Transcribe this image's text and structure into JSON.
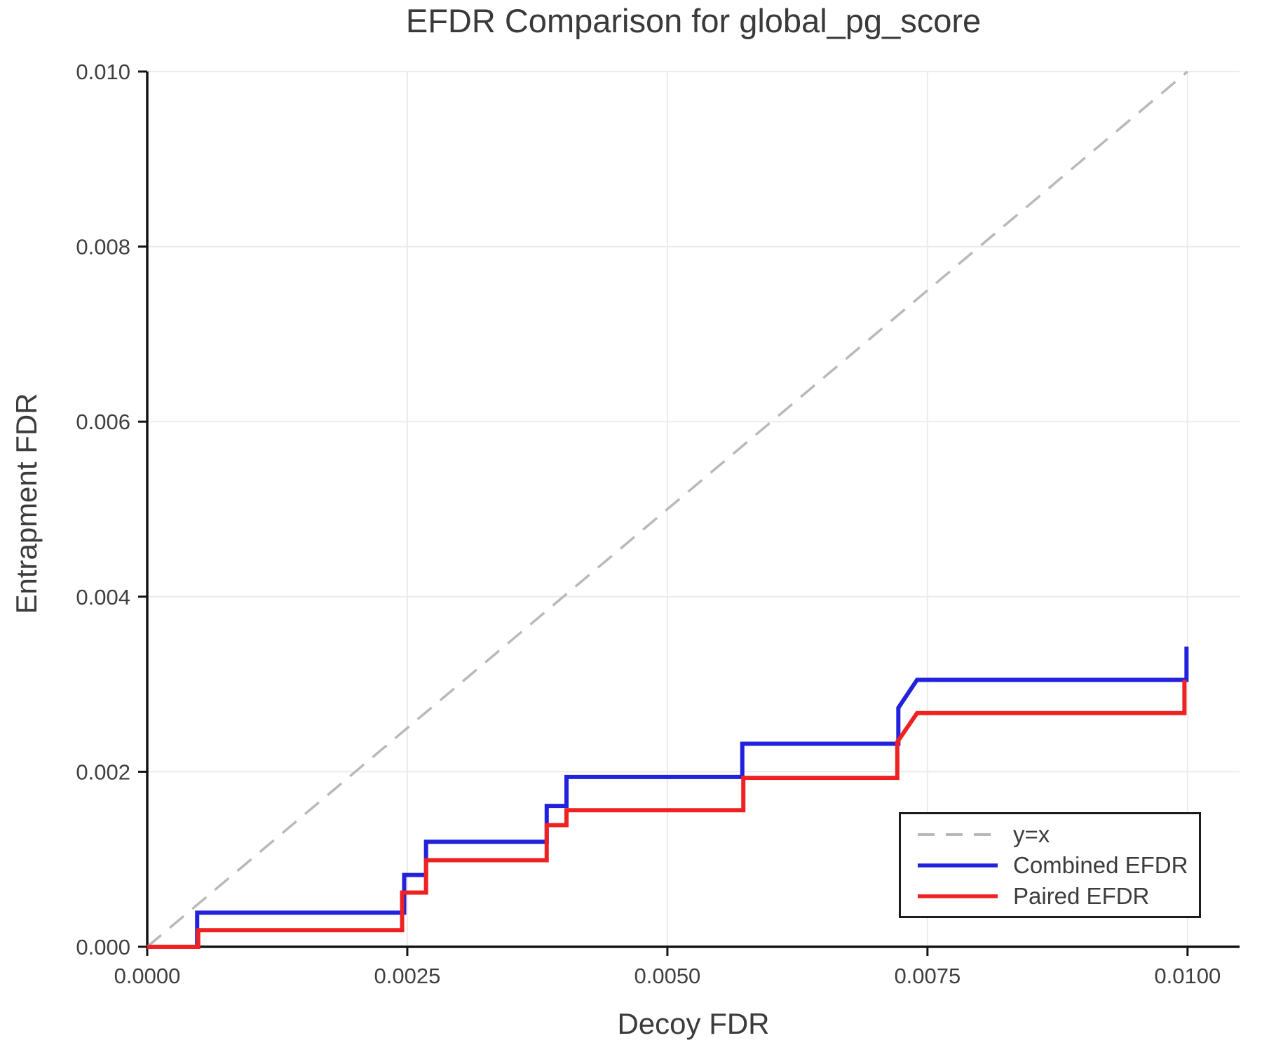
{
  "title": "EFDR Comparison for global_pg_score",
  "axes": {
    "x_label": "Decoy FDR",
    "y_label": "Entrapment FDR"
  },
  "legend": {
    "position": "lower right",
    "entries": [
      {
        "label": "y=x",
        "color": "#b9b9b9",
        "dashed": true
      },
      {
        "label": "Combined EFDR",
        "color": "#2222dd",
        "dashed": false
      },
      {
        "label": "Paired EFDR",
        "color": "#ee2222",
        "dashed": false
      }
    ]
  },
  "chart_data": {
    "type": "line",
    "title": "EFDR Comparison for global_pg_score",
    "xlabel": "Decoy FDR",
    "ylabel": "Entrapment FDR",
    "xlim": [
      0,
      0.0105
    ],
    "ylim": [
      0,
      0.01
    ],
    "grid": true,
    "legend_position": "lower right",
    "x_ticks": [
      {
        "value": 0.0,
        "label": "0.0000"
      },
      {
        "value": 0.0025,
        "label": "0.0025"
      },
      {
        "value": 0.005,
        "label": "0.0050"
      },
      {
        "value": 0.0075,
        "label": "0.0075"
      },
      {
        "value": 0.01,
        "label": "0.0100"
      }
    ],
    "y_ticks": [
      {
        "value": 0.0,
        "label": "0.000"
      },
      {
        "value": 0.002,
        "label": "0.002"
      },
      {
        "value": 0.004,
        "label": "0.004"
      },
      {
        "value": 0.006,
        "label": "0.006"
      },
      {
        "value": 0.008,
        "label": "0.008"
      },
      {
        "value": 0.01,
        "label": "0.010"
      }
    ],
    "reference_line": {
      "name": "y=x",
      "color": "#b9b9b9",
      "style": "dashed",
      "points": [
        [
          0,
          0
        ],
        [
          0.01,
          0.01
        ]
      ]
    },
    "series": [
      {
        "name": "Combined EFDR",
        "color": "#2222dd",
        "points": [
          [
            0,
            0
          ],
          [
            0.00048,
            0
          ],
          [
            0.00048,
            0.00039
          ],
          [
            0.00247,
            0.00039
          ],
          [
            0.00247,
            0.00082
          ],
          [
            0.00268,
            0.00082
          ],
          [
            0.00268,
            0.0012
          ],
          [
            0.00384,
            0.0012
          ],
          [
            0.00384,
            0.00161
          ],
          [
            0.00403,
            0.00161
          ],
          [
            0.00403,
            0.00194
          ],
          [
            0.00572,
            0.00194
          ],
          [
            0.00572,
            0.00232
          ],
          [
            0.00722,
            0.00232
          ],
          [
            0.00722,
            0.00273
          ],
          [
            0.0074,
            0.00305
          ],
          [
            0.00999,
            0.00305
          ],
          [
            0.00999,
            0.00343
          ]
        ]
      },
      {
        "name": "Paired EFDR",
        "color": "#ee2222",
        "points": [
          [
            0,
            0
          ],
          [
            0.00049,
            0
          ],
          [
            0.00049,
            0.00019
          ],
          [
            0.00245,
            0.00019
          ],
          [
            0.00245,
            0.00062
          ],
          [
            0.00268,
            0.00062
          ],
          [
            0.00268,
            0.00099
          ],
          [
            0.00384,
            0.00099
          ],
          [
            0.00384,
            0.00139
          ],
          [
            0.00403,
            0.00139
          ],
          [
            0.00403,
            0.00156
          ],
          [
            0.00573,
            0.00156
          ],
          [
            0.00573,
            0.00193
          ],
          [
            0.00721,
            0.00193
          ],
          [
            0.00721,
            0.00234
          ],
          [
            0.0074,
            0.00267
          ],
          [
            0.00997,
            0.00267
          ],
          [
            0.00997,
            0.00305
          ]
        ]
      }
    ]
  },
  "style": {
    "grid_color": "#ebebeb",
    "axis_color": "#141414",
    "tick_label_color": "#3f3f3f",
    "series_line_width": 6,
    "reference_line_width": 3.5
  }
}
